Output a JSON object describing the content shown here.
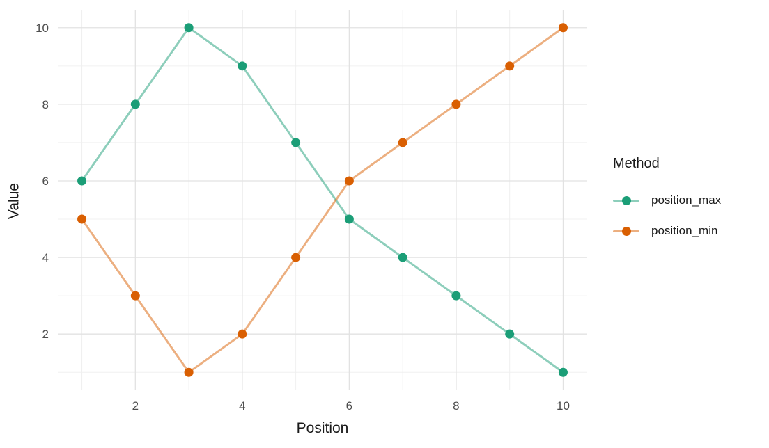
{
  "chart_data": {
    "type": "line",
    "title": "",
    "xlabel": "Position",
    "ylabel": "Value",
    "legend_title": "Method",
    "legend_position": "right",
    "grid": true,
    "x": [
      1,
      2,
      3,
      4,
      5,
      6,
      7,
      8,
      9,
      10
    ],
    "series": [
      {
        "name": "position_max",
        "color": "#1b9e77",
        "values": [
          6,
          8,
          10,
          9,
          7,
          5,
          4,
          3,
          2,
          1
        ]
      },
      {
        "name": "position_min",
        "color": "#d95f02",
        "values": [
          5,
          3,
          1,
          2,
          4,
          6,
          7,
          8,
          9,
          10
        ]
      }
    ],
    "x_ticks": [
      2,
      4,
      6,
      8,
      10
    ],
    "y_ticks": [
      2,
      4,
      6,
      8,
      10
    ],
    "x_minor_ticks": [
      1,
      3,
      5,
      7,
      9
    ],
    "y_minor_ticks": [
      1,
      3,
      5,
      7,
      9
    ],
    "xlim": [
      0.55,
      10.45
    ],
    "ylim": [
      0.55,
      10.45
    ],
    "line_opacity": 0.5,
    "line_width": 3,
    "point_radius": 6.5,
    "colors": {
      "background": "#ffffff",
      "grid_major": "#e2e2e2",
      "grid_minor": "#f0f0f0",
      "tick_label": "#4d4d4d",
      "axis_title": "#1a1a1a",
      "legend_text": "#1a1a1a"
    }
  }
}
